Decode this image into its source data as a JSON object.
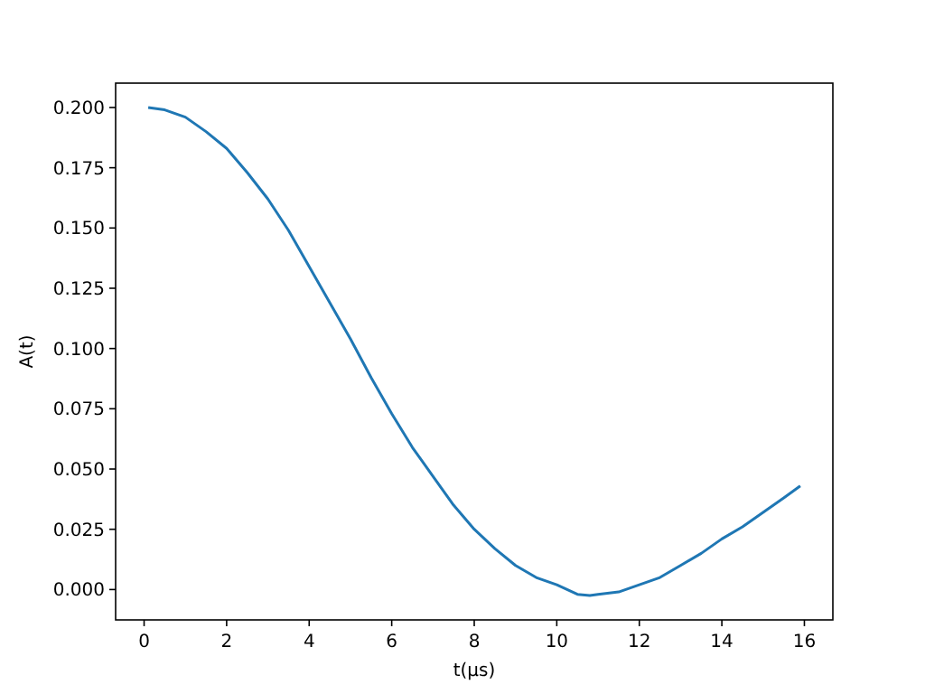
{
  "chart_data": {
    "type": "line",
    "xlabel": "t(μs)",
    "ylabel": "A(t)",
    "x": [
      0.1,
      0.5,
      1,
      1.5,
      2,
      2.5,
      3,
      3.5,
      4,
      4.5,
      5,
      5.5,
      6,
      6.5,
      7,
      7.5,
      8,
      8.5,
      9,
      9.5,
      10,
      10.5,
      10.8,
      11,
      11.5,
      12,
      12.5,
      13,
      13.5,
      14,
      14.5,
      15,
      15.5,
      15.9
    ],
    "series": [
      {
        "color": "#1f77b4",
        "values": [
          0.2,
          0.199,
          0.196,
          0.19,
          0.183,
          0.173,
          0.162,
          0.149,
          0.134,
          0.119,
          0.104,
          0.088,
          0.073,
          0.059,
          0.047,
          0.035,
          0.025,
          0.017,
          0.01,
          0.005,
          0.002,
          -0.002,
          -0.0025,
          -0.002,
          -0.001,
          0.002,
          0.005,
          0.01,
          0.015,
          0.021,
          0.026,
          0.032,
          0.038,
          0.043
        ]
      }
    ],
    "xlim": [
      -0.69,
      16.69
    ],
    "ylim": [
      -0.0126,
      0.2101
    ],
    "xticks": [
      0,
      2,
      4,
      6,
      8,
      10,
      12,
      14,
      16
    ],
    "yticks": [
      {
        "value": 0,
        "label": "0.000"
      },
      {
        "value": 0.025,
        "label": "0.025"
      },
      {
        "value": 0.05,
        "label": "0.050"
      },
      {
        "value": 0.075,
        "label": "0.075"
      },
      {
        "value": 0.1,
        "label": "0.100"
      },
      {
        "value": 0.125,
        "label": "0.125"
      },
      {
        "value": 0.15,
        "label": "0.150"
      },
      {
        "value": 0.175,
        "label": "0.175"
      },
      {
        "value": 0.2,
        "label": "0.200"
      }
    ],
    "line_style": "solid",
    "marker": "none",
    "grid": false
  }
}
